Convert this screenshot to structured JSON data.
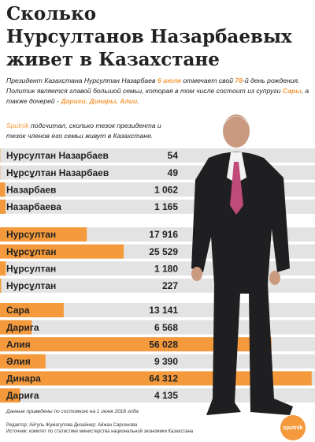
{
  "header": {
    "title": [
      "Сколько",
      "Нурсултанов Назарбаевых",
      "живет в Казахстане"
    ]
  },
  "intro": {
    "paragraph1": [
      "Президент Казахстана Нурсултан Назарбаев ",
      "6 июля",
      " отмечает свой ",
      "78",
      "-й день рождения. Политик является главой большой семьи, которая в том числе состоит из супруги ",
      "Сары",
      ", а также дочерей - ",
      "Дариги, Динары, Алии",
      "."
    ],
    "paragraph2": [
      "Sputnik",
      " подсчитал, сколько тезок президента и тезок членов его семьи живут в Казахстане."
    ]
  },
  "chart_data": [
    {
      "type": "bar",
      "orientation": "horizontal",
      "color": "#f59a3c",
      "xlim": [
        0,
        65000
      ],
      "categories": [
        "Нурсултан Назарбаев",
        "Нұрсұлтан Назарбаев",
        "Назарбаев",
        "Назарбаева"
      ],
      "values": [
        54,
        49,
        1062,
        1165
      ],
      "value_labels": [
        "54",
        "49",
        "1 062",
        "1 165"
      ]
    },
    {
      "type": "bar",
      "orientation": "horizontal",
      "color": "#f59a3c",
      "xlim": [
        0,
        65000
      ],
      "categories": [
        "Нурсултан",
        "Нұрсұлтан",
        "Нұрсултан",
        "Нурсұлтан"
      ],
      "values": [
        17916,
        25529,
        1180,
        227
      ],
      "value_labels": [
        "17 916",
        "25 529",
        "1 180",
        "227"
      ]
    },
    {
      "type": "bar",
      "orientation": "horizontal",
      "color": "#f59a3c",
      "xlim": [
        0,
        65000
      ],
      "categories": [
        "Сара",
        "Дарига",
        "Алия",
        "Әлия",
        "Динара",
        "Дариға"
      ],
      "values": [
        13141,
        6568,
        56028,
        9390,
        64312,
        4135
      ],
      "value_labels": [
        "13 141",
        "6 568",
        "56 028",
        "9 390",
        "64 312",
        "4 135"
      ]
    }
  ],
  "footer": {
    "note": "Данные приведены по состоянию на 1 июня 2018 года",
    "credits": "Редактор: Айгуль Жумагулова Дизайнер: Айжан Сарсенова",
    "source": "Источник: комитет по статистике министерства национальной экономики Казахстана",
    "logo": "sputnik"
  }
}
